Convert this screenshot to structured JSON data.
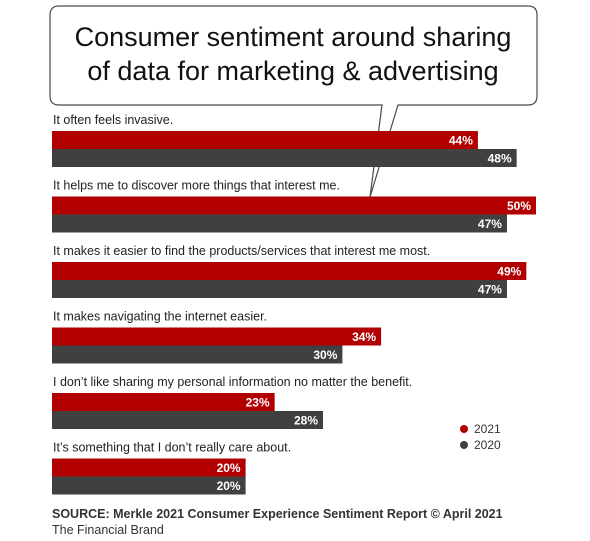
{
  "chart_data": {
    "type": "bar",
    "orientation": "horizontal",
    "title": "Consumer sentiment around sharing of data for marketing & advertising",
    "title_lines": [
      "Consumer sentiment around sharing",
      "of data for marketing & advertising"
    ],
    "categories": [
      "It often feels invasive.",
      "It helps me to discover more things that interest me.",
      "It makes it easier to find the products/services that interest me most.",
      "It makes navigating the internet easier.",
      "I don’t like sharing my personal information no matter the benefit.",
      "It’s something that I don’t really care about."
    ],
    "series": [
      {
        "name": "2021",
        "color": "#b20000",
        "values": [
          44,
          50,
          49,
          34,
          23,
          20
        ]
      },
      {
        "name": "2020",
        "color": "#404040",
        "values": [
          48,
          47,
          47,
          30,
          28,
          20
        ]
      }
    ],
    "value_suffix": "%",
    "xlim": [
      0,
      50
    ],
    "grid": false,
    "legend_position": "right"
  },
  "footer": {
    "source_prefix": "SOURCE:",
    "source_text": " Merkle 2021 Consumer Experience Sentiment Report © April 2021",
    "brand": "The Financial Brand"
  }
}
